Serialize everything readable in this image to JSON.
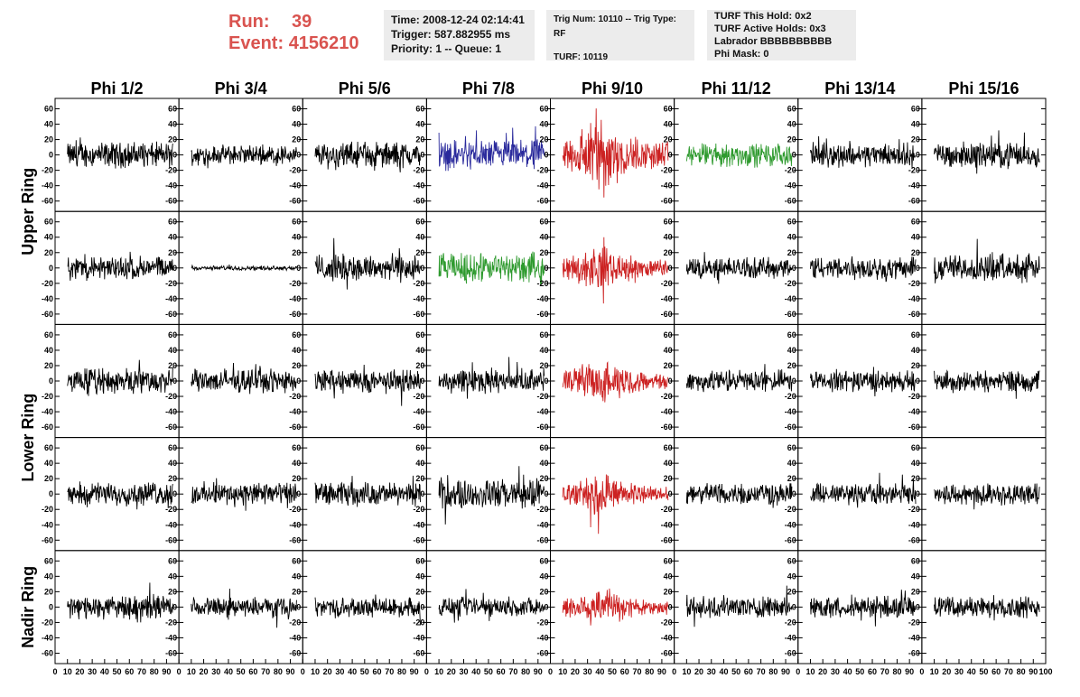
{
  "header": {
    "run_label": "Run:",
    "run_value": "39",
    "event_label": "Event:",
    "event_value": "4156210",
    "time": "Time: 2008-12-24 02:14:41",
    "trigger": "Trigger: 587.882955 ms",
    "priority": "Priority: 1 -- Queue: 1",
    "trig_num": "Trig Num: 10110 -- Trig Type: RF",
    "turf": "TURF: 10119",
    "turf_this_hold": "TURF This Hold: 0x2",
    "turf_active_holds": "TURF Active Holds: 0x3",
    "labrador": "Labrador BBBBBBBBBB",
    "phi_mask": "Phi Mask: 0"
  },
  "colors": {
    "header_red": "#d9534f",
    "trace_default": "#000000",
    "trace_red": "#cc2222",
    "trace_blue": "#2a2a9c",
    "trace_green": "#2e9a2e"
  },
  "chart_data": {
    "type": "line",
    "columns": [
      "Phi 1/2",
      "Phi 3/4",
      "Phi 5/6",
      "Phi 7/8",
      "Phi 9/10",
      "Phi 11/12",
      "Phi 13/14",
      "Phi 15/16"
    ],
    "rows": [
      "Upper Ring",
      "Upper Ring",
      "Lower Ring",
      "Lower Ring",
      "Nadir Ring"
    ],
    "row_labels": [
      "Upper Ring",
      "Lower Ring",
      "Nadir Ring"
    ],
    "xlim": [
      0,
      100
    ],
    "ylim": [
      -70,
      70
    ],
    "yticks": [
      -60,
      -40,
      -20,
      0,
      20,
      40,
      60
    ],
    "xticks": [
      0,
      10,
      20,
      30,
      40,
      50,
      60,
      70,
      80,
      90,
      100
    ],
    "colored_traces": [
      {
        "row": 0,
        "col": 3,
        "color": "blue"
      },
      {
        "row": 0,
        "col": 4,
        "color": "red"
      },
      {
        "row": 0,
        "col": 5,
        "color": "green"
      },
      {
        "row": 1,
        "col": 3,
        "color": "green"
      },
      {
        "row": 1,
        "col": 4,
        "color": "red"
      },
      {
        "row": 2,
        "col": 4,
        "color": "red"
      },
      {
        "row": 3,
        "col": 4,
        "color": "red"
      },
      {
        "row": 4,
        "col": 4,
        "color": "red"
      }
    ],
    "trace_amplitudes": [
      [
        12,
        9,
        12,
        14,
        24,
        11,
        11,
        12
      ],
      [
        11,
        2,
        13,
        14,
        14,
        10,
        11,
        13
      ],
      [
        12,
        11,
        11,
        11,
        14,
        10,
        10,
        10
      ],
      [
        11,
        11,
        11,
        14,
        13,
        10,
        10,
        10
      ],
      [
        11,
        9,
        9,
        9,
        13,
        10,
        10,
        10
      ]
    ]
  }
}
